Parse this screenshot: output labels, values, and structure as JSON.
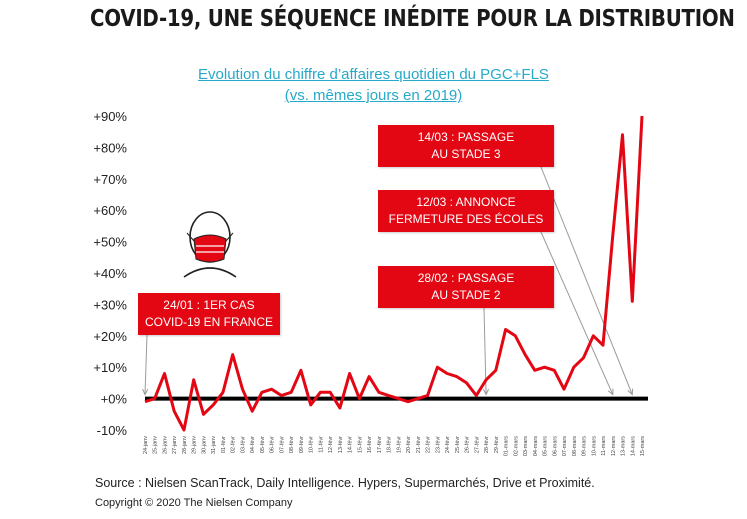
{
  "page_title": "COVID-19, UNE SÉQUENCE INÉDITE POUR LA DISTRIBUTION",
  "chart_title_line1": "Evolution du chiffre d’affaires quotidien du PGC+FLS",
  "chart_title_line2": "(vs. mêmes jours en 2019)",
  "annotations": [
    {
      "line1": "14/03 : PASSAGE",
      "line2": "AU STADE 3"
    },
    {
      "line1": "12/03 : ANNONCE",
      "line2": "FERMETURE DES ÉCOLES"
    },
    {
      "line1": "28/02 : PASSAGE",
      "line2": "AU STADE 2"
    },
    {
      "line1": "24/01 : 1ER CAS",
      "line2": "COVID-19 EN FRANCE"
    }
  ],
  "footer": {
    "source": "Source : Nielsen ScanTrack, Daily Intelligence. Hypers, Supermarchés, Drive et Proximité.",
    "copyright": "Copyright © 2020 The Nielsen Company"
  },
  "colors": {
    "line": "#e30613",
    "annotation_bg": "#e30613",
    "title_link": "#27a9c9",
    "zero_line": "#000000"
  },
  "icons": [
    "face-mask-icon"
  ],
  "chart_data": {
    "type": "line",
    "title": "Evolution du chiffre d’affaires quotidien du PGC+FLS (vs. mêmes jours en 2019)",
    "xlabel": "",
    "ylabel": "",
    "ylim": [
      -10,
      90
    ],
    "yticks": [
      "-10%",
      "+0%",
      "+10%",
      "+20%",
      "+30%",
      "+40%",
      "+50%",
      "+60%",
      "+70%",
      "+80%",
      "+90%"
    ],
    "grid": false,
    "categories": [
      "24-janv",
      "25-janv",
      "26-janv",
      "27-janv",
      "28-janv",
      "29-janv",
      "30-janv",
      "31-janv",
      "01-févr",
      "02-févr",
      "03-févr",
      "04-févr",
      "05-févr",
      "06-févr",
      "07-févr",
      "08-févr",
      "09-févr",
      "10-févr",
      "11-févr",
      "12-févr",
      "13-févr",
      "14-févr",
      "15-févr",
      "16-févr",
      "17-févr",
      "18-févr",
      "19-févr",
      "20-févr",
      "21-févr",
      "22-févr",
      "23-févr",
      "24-févr",
      "25-févr",
      "26-févr",
      "27-févr",
      "28-févr",
      "29-févr",
      "01-mars",
      "02-mars",
      "03-mars",
      "04-mars",
      "05-mars",
      "06-mars",
      "07-mars",
      "08-mars",
      "09-mars",
      "10-mars",
      "11-mars",
      "12-mars",
      "13-mars",
      "14-mars",
      "15-mars"
    ],
    "series": [
      {
        "values": [
          -1,
          0,
          8,
          -4,
          -10,
          6,
          -5,
          -2,
          2,
          14,
          3,
          -4,
          2,
          3,
          1,
          2,
          9,
          -2,
          2,
          2,
          -3,
          8,
          0,
          7,
          2,
          1,
          0,
          -1,
          0,
          1,
          10,
          8,
          7,
          5,
          1,
          6,
          9,
          22,
          20,
          14,
          9,
          10,
          9,
          3,
          10,
          13,
          20,
          17,
          52,
          84,
          31,
          90
        ]
      }
    ]
  }
}
